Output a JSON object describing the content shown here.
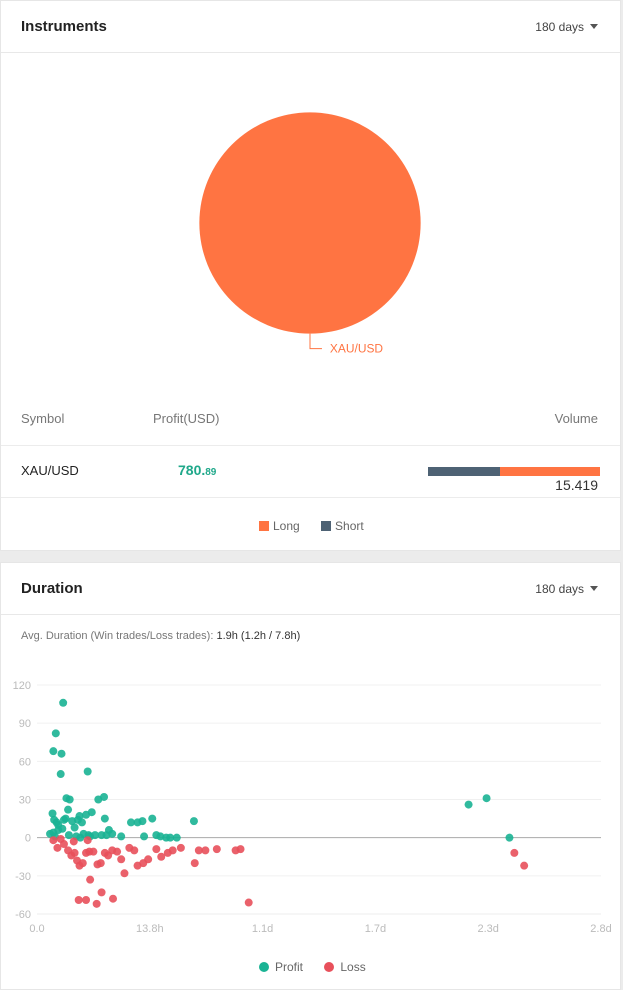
{
  "instruments": {
    "title": "Instruments",
    "range": "180 days",
    "pie": {
      "slices": [
        {
          "label": "XAU/USD",
          "value": 100,
          "color": "#ff7442"
        }
      ]
    },
    "table": {
      "headers": {
        "symbol": "Symbol",
        "profit": "Profit(USD)",
        "volume": "Volume"
      },
      "rows": [
        {
          "symbol": "XAU/USD",
          "profit_int": "780.",
          "profit_dec": "89",
          "volume": "15.419",
          "short_share": 0.42
        }
      ]
    },
    "legend": {
      "long": "Long",
      "short": "Short",
      "long_color": "#ff7442",
      "short_color": "#4e6274"
    }
  },
  "duration": {
    "title": "Duration",
    "range": "180 days",
    "avg_label": "Avg. Duration (Win trades/Loss trades):",
    "avg_value": "1.9h (1.2h / 7.8h)",
    "legend": {
      "profit": "Profit",
      "loss": "Loss",
      "profit_color": "#1ab394",
      "loss_color": "#e8505b"
    },
    "chart_data": {
      "type": "scatter",
      "x_unit": "hours",
      "x_ticks": [
        {
          "v": 0,
          "label": "0.0"
        },
        {
          "v": 13.8,
          "label": "13.8h"
        },
        {
          "v": 27.6,
          "label": "1.1d"
        },
        {
          "v": 41.4,
          "label": "1.7d"
        },
        {
          "v": 55.2,
          "label": "2.3d"
        },
        {
          "v": 69,
          "label": "2.8d"
        }
      ],
      "y_ticks": [
        120,
        90,
        60,
        30,
        0,
        -30,
        -60
      ],
      "xlim": [
        0,
        69
      ],
      "ylim": [
        -60,
        120
      ],
      "series": [
        {
          "name": "Profit",
          "points": [
            [
              3.2,
              106
            ],
            [
              2.3,
              82
            ],
            [
              2.0,
              68
            ],
            [
              3.0,
              66
            ],
            [
              2.9,
              50
            ],
            [
              6.2,
              52
            ],
            [
              1.9,
              19
            ],
            [
              2.1,
              14
            ],
            [
              2.4,
              12
            ],
            [
              2.6,
              10
            ],
            [
              3.3,
              14
            ],
            [
              3.5,
              15
            ],
            [
              3.8,
              22
            ],
            [
              3.6,
              31
            ],
            [
              4.0,
              30
            ],
            [
              4.3,
              13
            ],
            [
              4.6,
              8
            ],
            [
              5.0,
              14
            ],
            [
              5.2,
              17
            ],
            [
              5.5,
              12
            ],
            [
              6.0,
              18
            ],
            [
              6.3,
              2
            ],
            [
              6.7,
              20
            ],
            [
              7.5,
              30
            ],
            [
              8.2,
              32
            ],
            [
              7.9,
              2
            ],
            [
              8.5,
              2
            ],
            [
              8.8,
              6
            ],
            [
              8.3,
              15
            ],
            [
              9.2,
              3
            ],
            [
              10.3,
              1
            ],
            [
              11.5,
              12
            ],
            [
              12.3,
              12
            ],
            [
              12.9,
              13
            ],
            [
              13.1,
              1
            ],
            [
              14.1,
              15
            ],
            [
              14.6,
              2
            ],
            [
              15.1,
              1
            ],
            [
              15.8,
              0
            ],
            [
              16.3,
              0
            ],
            [
              17.1,
              0
            ],
            [
              19.2,
              13
            ],
            [
              2.0,
              4
            ],
            [
              2.6,
              6
            ],
            [
              3.1,
              7
            ],
            [
              4.8,
              1
            ],
            [
              5.7,
              3
            ],
            [
              6.5,
              1
            ],
            [
              7.1,
              2
            ],
            [
              1.6,
              3
            ],
            [
              2.2,
              1
            ],
            [
              3.9,
              2
            ],
            [
              5.3,
              0
            ],
            [
              52.8,
              26
            ],
            [
              55.0,
              31
            ],
            [
              57.8,
              0
            ]
          ]
        },
        {
          "name": "Loss",
          "points": [
            [
              2.0,
              -2
            ],
            [
              2.5,
              -8
            ],
            [
              3.3,
              -5
            ],
            [
              3.8,
              -10
            ],
            [
              4.2,
              -14
            ],
            [
              4.6,
              -12
            ],
            [
              4.9,
              -18
            ],
            [
              5.2,
              -22
            ],
            [
              5.6,
              -20
            ],
            [
              6.0,
              -12
            ],
            [
              6.4,
              -11
            ],
            [
              6.9,
              -11
            ],
            [
              7.4,
              -21
            ],
            [
              7.8,
              -20
            ],
            [
              8.3,
              -12
            ],
            [
              8.7,
              -14
            ],
            [
              9.2,
              -10
            ],
            [
              9.8,
              -11
            ],
            [
              10.3,
              -17
            ],
            [
              10.7,
              -28
            ],
            [
              11.3,
              -8
            ],
            [
              11.9,
              -10
            ],
            [
              12.3,
              -22
            ],
            [
              13.0,
              -20
            ],
            [
              13.6,
              -17
            ],
            [
              14.6,
              -9
            ],
            [
              15.2,
              -15
            ],
            [
              16.0,
              -12
            ],
            [
              16.6,
              -10
            ],
            [
              17.6,
              -8
            ],
            [
              19.3,
              -20
            ],
            [
              19.8,
              -10
            ],
            [
              20.6,
              -10
            ],
            [
              22.0,
              -9
            ],
            [
              24.3,
              -10
            ],
            [
              24.9,
              -9
            ],
            [
              25.9,
              -51
            ],
            [
              5.1,
              -49
            ],
            [
              6.0,
              -49
            ],
            [
              6.5,
              -33
            ],
            [
              7.3,
              -52
            ],
            [
              7.9,
              -43
            ],
            [
              9.3,
              -48
            ],
            [
              2.9,
              -1
            ],
            [
              4.5,
              -3
            ],
            [
              6.2,
              -2
            ],
            [
              58.4,
              -12
            ],
            [
              59.6,
              -22
            ]
          ]
        }
      ]
    }
  }
}
